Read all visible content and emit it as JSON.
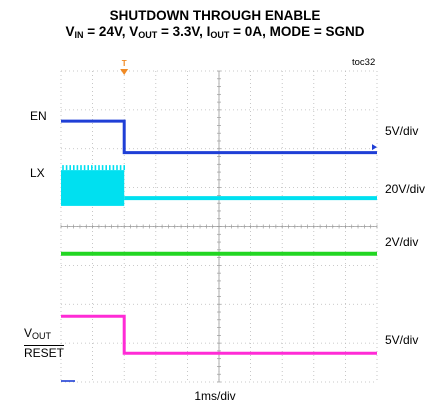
{
  "title_line1": "SHUTDOWN THROUGH ENABLE",
  "title_line2": {
    "vin_label": "V",
    "vin_sub": "IN",
    "vin_value": " = 24V, ",
    "vout_label": "V",
    "vout_sub": "OUT",
    "vout_value": " = 3.3V, ",
    "iout_label": "I",
    "iout_sub": "OUT",
    "iout_value": " = 0A, ",
    "mode_text": "MODE = SGND"
  },
  "figure_id": "toc32",
  "chart_data": {
    "type": "line",
    "xlabel": "1ms/div",
    "x_divisions": 10,
    "y_divisions": 8,
    "trigger_marker": "T",
    "shutdown_time_div": 2.0,
    "grid": true,
    "series": [
      {
        "name": "EN",
        "color": "#1f3fd6",
        "scale": "5V/div",
        "high_div": 6.71,
        "low_div": 5.9
      },
      {
        "name": "LX",
        "color": "#00e0f0",
        "scale": "20V/div",
        "switching_top_div": 5.45,
        "switching_bottom_div": 4.53,
        "low_div": 4.73
      },
      {
        "name": "VOUT",
        "label_main": "V",
        "label_sub": "OUT",
        "color": "#22d622",
        "scale": "2V/div",
        "level_div": 3.3
      },
      {
        "name": "RESET",
        "color": "#ff2bd6",
        "scale": "5V/div",
        "high_div": 1.69,
        "low_div": 0.74
      }
    ]
  }
}
